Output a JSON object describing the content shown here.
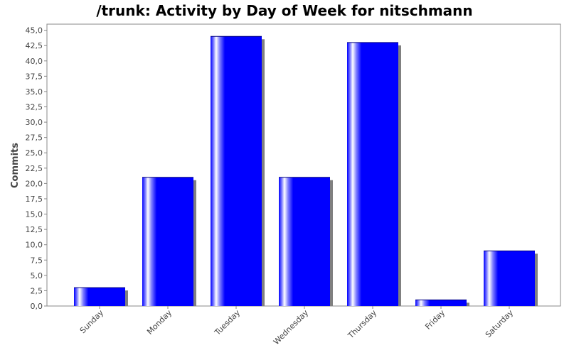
{
  "chart_data": {
    "type": "bar",
    "title": "/trunk: Activity by Day of Week for nitschmann",
    "xlabel": "",
    "ylabel": "Commits",
    "categories": [
      "Sunday",
      "Monday",
      "Tuesday",
      "Wednesday",
      "Thursday",
      "Friday",
      "Saturday"
    ],
    "values": [
      3,
      21,
      44,
      21,
      43,
      1,
      9
    ],
    "ylim": [
      0,
      46
    ],
    "yticks": [
      "0,0",
      "2,5",
      "5,0",
      "7,5",
      "10,0",
      "12,5",
      "15,0",
      "17,5",
      "20,0",
      "22,5",
      "25,0",
      "27,5",
      "30,0",
      "32,5",
      "35,0",
      "37,5",
      "40,0",
      "42,5",
      "45,0"
    ],
    "ytick_step": 2.5,
    "grid": false,
    "legend": "none",
    "colors": {
      "bar": "#0000ff",
      "bar_highlight": "#ffffff",
      "shadow": "#808080",
      "axis": "#888888",
      "text": "#444444"
    }
  }
}
